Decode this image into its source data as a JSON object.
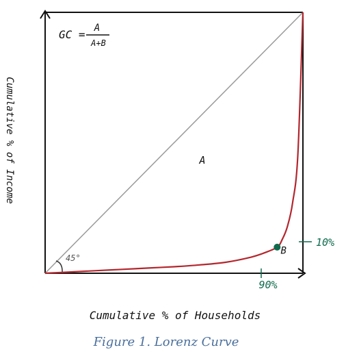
{
  "chart_data": {
    "type": "line",
    "title": "",
    "xlabel": "Cumulative % of Households",
    "ylabel": "Cumulative % of Income",
    "xlim": [
      0,
      100
    ],
    "ylim": [
      0,
      100
    ],
    "grid": false,
    "series": [
      {
        "name": "",
        "x": [
          0,
          10,
          20,
          30,
          40,
          50,
          60,
          70,
          80,
          85,
          90,
          92,
          94,
          96,
          98,
          100
        ],
        "y": [
          0,
          0.5,
          1.0,
          1.5,
          2.0,
          2.5,
          3.2,
          4.2,
          6.2,
          7.8,
          10,
          13,
          18,
          27,
          45,
          100
        ],
        "color": "#b3262d"
      }
    ],
    "equality_line": {
      "x": [
        0,
        100
      ],
      "y": [
        0,
        100
      ],
      "color": "#9a9a9a"
    },
    "highlight_point": {
      "x": 90,
      "y": 10,
      "color": "#0f6b4e"
    },
    "angle_label": "45°",
    "formula": {
      "lhs": "GC =",
      "numerator": "A",
      "denominator": "A+B"
    },
    "regions": [
      {
        "label": "A",
        "x": 61,
        "y": 42
      },
      {
        "label": "B",
        "x": 92.5,
        "y": 7.5
      }
    ],
    "markers": {
      "x_label": "90%",
      "y_label": "10%",
      "color": "#0f6b4e"
    },
    "caption": "Figure 1. Lorenz Curve"
  }
}
